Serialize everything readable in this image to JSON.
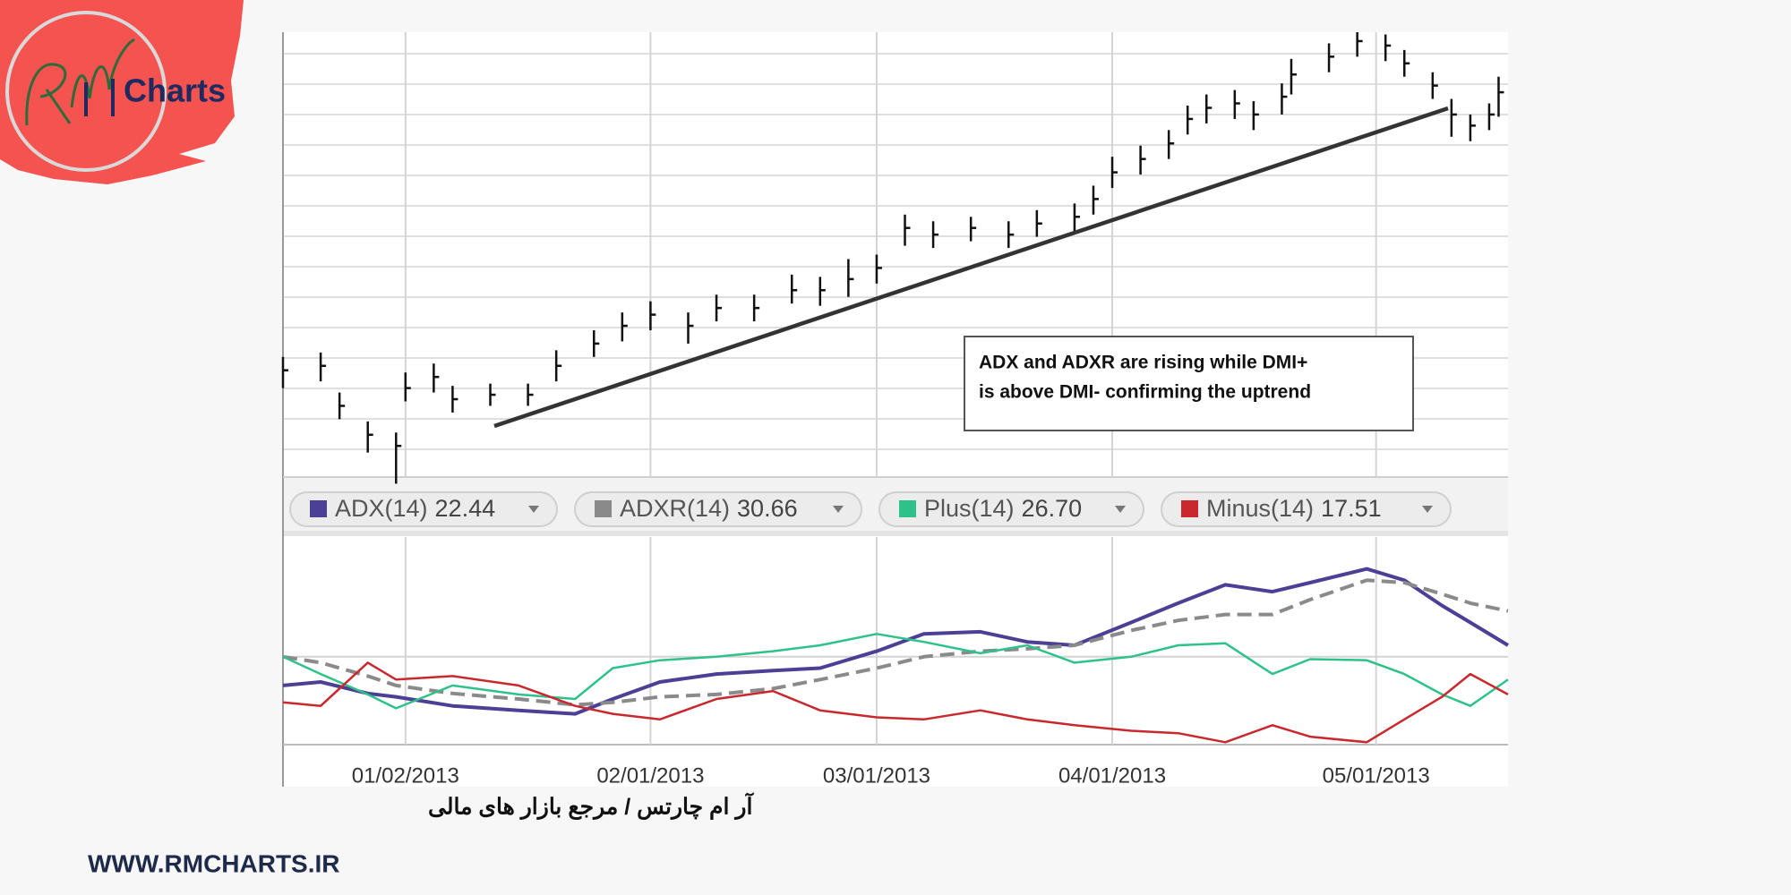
{
  "brand": {
    "logo_text": "Charts",
    "tagline": "آر ام چارتس / مرجع بازار های مالی",
    "website": "WWW.RMCHARTS.IR"
  },
  "chart_data": [
    {
      "type": "ohlc",
      "annotation": [
        "ADX and ADXR are rising while DMI+",
        "is above DMI- confirming the uptrend"
      ],
      "xlim": [
        0,
        130
      ],
      "xticks": [
        13,
        39,
        63,
        88,
        116
      ],
      "ylim": [
        1400,
        1600
      ],
      "color": "#111111",
      "x": [
        0,
        4,
        6,
        9,
        12,
        13,
        16,
        18,
        22,
        26,
        29,
        33,
        36,
        39,
        43,
        46,
        50,
        54,
        57,
        60,
        63,
        66,
        69,
        73,
        77,
        80,
        84,
        86,
        88,
        91,
        94,
        96,
        98,
        101,
        103,
        106,
        107,
        111,
        114,
        117,
        119,
        122,
        124,
        126,
        128,
        129
      ],
      "high": [
        1454,
        1456,
        1438,
        1425,
        1420,
        1447,
        1451,
        1441,
        1442,
        1442,
        1457,
        1466,
        1474,
        1479,
        1474,
        1482,
        1482,
        1491,
        1490,
        1498,
        1500,
        1518,
        1515,
        1517,
        1515,
        1520,
        1523,
        1531,
        1544,
        1549,
        1556,
        1567,
        1572,
        1574,
        1569,
        1577,
        1588,
        1595,
        1600,
        1599,
        1592,
        1582,
        1570,
        1563,
        1568,
        1580
      ],
      "low": [
        1440,
        1443,
        1426,
        1411,
        1397,
        1434,
        1438,
        1429,
        1432,
        1432,
        1443,
        1454,
        1461,
        1466,
        1460,
        1470,
        1470,
        1478,
        1477,
        1481,
        1487,
        1504,
        1503,
        1506,
        1503,
        1508,
        1510,
        1518,
        1530,
        1536,
        1543,
        1554,
        1559,
        1561,
        1556,
        1563,
        1572,
        1582,
        1589,
        1587,
        1580,
        1570,
        1553,
        1551,
        1556,
        1562
      ],
      "close": [
        1448,
        1450,
        1432,
        1419,
        1414,
        1440,
        1445,
        1435,
        1437,
        1437,
        1450,
        1460,
        1468,
        1473,
        1468,
        1476,
        1476,
        1484,
        1484,
        1489,
        1494,
        1512,
        1509,
        1512,
        1509,
        1514,
        1517,
        1525,
        1537,
        1543,
        1550,
        1561,
        1566,
        1568,
        1563,
        1571,
        1581,
        1589,
        1596,
        1594,
        1586,
        1576,
        1563,
        1558,
        1563,
        1573
      ]
    },
    {
      "type": "line",
      "xlim": [
        0,
        130
      ],
      "ylim": [
        0,
        60
      ],
      "yticks": [
        25.4
      ],
      "xticks": [
        {
          "value": 13,
          "label": "01/02/2013"
        },
        {
          "value": 39,
          "label": "02/01/2013"
        },
        {
          "value": 63,
          "label": "03/01/2013"
        },
        {
          "value": 88,
          "label": "04/01/2013"
        },
        {
          "value": 116,
          "label": "05/01/2013"
        }
      ],
      "x": [
        0,
        4,
        9,
        12,
        18,
        25,
        31,
        35,
        40,
        46,
        52,
        57,
        63,
        68,
        74,
        79,
        84,
        90,
        95,
        100,
        105,
        109,
        115,
        119,
        123,
        126,
        130
      ],
      "series": [
        {
          "name": "ADX(14)",
          "legend_value": "22.44",
          "color": "#4b3f96",
          "values": [
            17.1,
            18.1,
            14.8,
            13.8,
            11.2,
            9.9,
            8.9,
            13.2,
            18.1,
            20.4,
            21.4,
            22.1,
            27.0,
            32.0,
            32.6,
            29.7,
            28.7,
            35.3,
            40.9,
            46.2,
            44.2,
            46.8,
            50.8,
            47.5,
            40.2,
            35.3,
            28.7
          ]
        },
        {
          "name": "ADXR(14)",
          "legend_value": "30.66",
          "color": "#8a8a8a",
          "dashed": true,
          "values": [
            25.4,
            23.7,
            19.8,
            17.1,
            14.8,
            13.2,
            11.5,
            12.2,
            13.8,
            14.5,
            16.2,
            18.8,
            22.1,
            25.4,
            27.0,
            27.7,
            28.7,
            33.0,
            35.9,
            37.6,
            37.6,
            41.9,
            47.5,
            46.8,
            43.5,
            40.9,
            38.6
          ]
        },
        {
          "name": "Plus(14)",
          "legend_value": "26.70",
          "color": "#2ec28a",
          "values": [
            25.4,
            20.4,
            14.5,
            10.5,
            17.1,
            14.5,
            13.2,
            22.1,
            24.4,
            25.4,
            27.0,
            28.7,
            32.0,
            29.7,
            26.4,
            28.7,
            23.7,
            25.4,
            28.7,
            29.3,
            20.4,
            24.7,
            24.4,
            20.4,
            14.5,
            11.2,
            18.8
          ]
        },
        {
          "name": "Minus(14)",
          "legend_value": "17.51",
          "color": "#c8282e",
          "values": [
            12.2,
            11.2,
            23.7,
            18.8,
            19.8,
            17.1,
            11.2,
            8.9,
            7.3,
            13.2,
            15.5,
            9.9,
            7.9,
            7.3,
            9.9,
            7.3,
            5.6,
            4.0,
            3.3,
            0.7,
            5.6,
            2.3,
            0.7,
            7.3,
            13.8,
            20.4,
            14.5
          ]
        }
      ]
    }
  ]
}
